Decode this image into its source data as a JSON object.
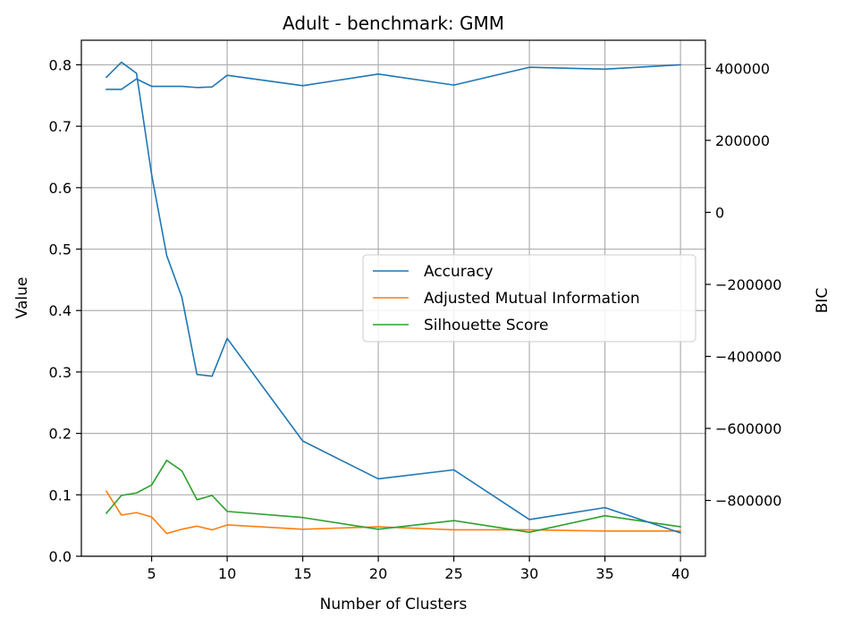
{
  "chart_data": {
    "type": "line",
    "title": "Adult - benchmark: GMM",
    "xlabel": "Number of Clusters",
    "ylabel": "Value",
    "y2label": "BIC",
    "xlim": [
      0.35,
      41.65
    ],
    "ylim": [
      0,
      0.84
    ],
    "y2lim": [
      -955000,
      478000
    ],
    "grid": true,
    "legend_position": "center-right",
    "x": [
      2,
      3,
      4,
      5,
      6,
      7,
      8,
      9,
      10,
      15,
      20,
      25,
      30,
      35,
      40
    ],
    "xticks": [
      5,
      10,
      15,
      20,
      25,
      30,
      35,
      40
    ],
    "xtick_labels": [
      "5",
      "10",
      "15",
      "20",
      "25",
      "30",
      "35",
      "40"
    ],
    "yticks": [
      0.0,
      0.1,
      0.2,
      0.3,
      0.4,
      0.5,
      0.6,
      0.7,
      0.8
    ],
    "ytick_labels": [
      "0.0",
      "0.1",
      "0.2",
      "0.3",
      "0.4",
      "0.5",
      "0.6",
      "0.7",
      "0.8"
    ],
    "y2ticks": [
      400000,
      200000,
      0,
      -200000,
      -400000,
      -600000,
      -800000
    ],
    "y2tick_labels": [
      "400000",
      "200000",
      "0",
      "−200000",
      "−400000",
      "−600000",
      "−800000"
    ],
    "series": [
      {
        "name": "Accuracy",
        "axis": "left",
        "color": "#1f77b4",
        "values": [
          0.76,
          0.76,
          0.777,
          0.765,
          0.765,
          0.765,
          0.763,
          0.764,
          0.783,
          0.766,
          0.785,
          0.767,
          0.796,
          0.793,
          0.8
        ]
      },
      {
        "name": "Adjusted Mutual Information",
        "axis": "left",
        "color": "#ff7f0e",
        "values": [
          0.106,
          0.067,
          0.071,
          0.064,
          0.037,
          0.044,
          0.049,
          0.043,
          0.051,
          0.044,
          0.048,
          0.043,
          0.043,
          0.041,
          0.041
        ]
      },
      {
        "name": "Silhouette Score",
        "axis": "left",
        "color": "#2ca02c",
        "values": [
          0.07,
          0.099,
          0.103,
          0.116,
          0.156,
          0.139,
          0.092,
          0.099,
          0.073,
          0.063,
          0.044,
          0.058,
          0.039,
          0.066,
          0.048
        ]
      }
    ],
    "bic_series": {
      "axis": "right",
      "color": "#1f77b4",
      "x": [
        2,
        3,
        4,
        5,
        6,
        7,
        8,
        9,
        10,
        15,
        20,
        25,
        30,
        35,
        40
      ],
      "values": [
        375000,
        417000,
        386000,
        105000,
        -120000,
        -235000,
        -450000,
        -455000,
        -350000,
        -635000,
        -740000,
        -715000,
        -853000,
        -820000,
        -890000
      ]
    },
    "legend": [
      "Accuracy",
      "Adjusted Mutual Information",
      "Silhouette Score"
    ]
  }
}
